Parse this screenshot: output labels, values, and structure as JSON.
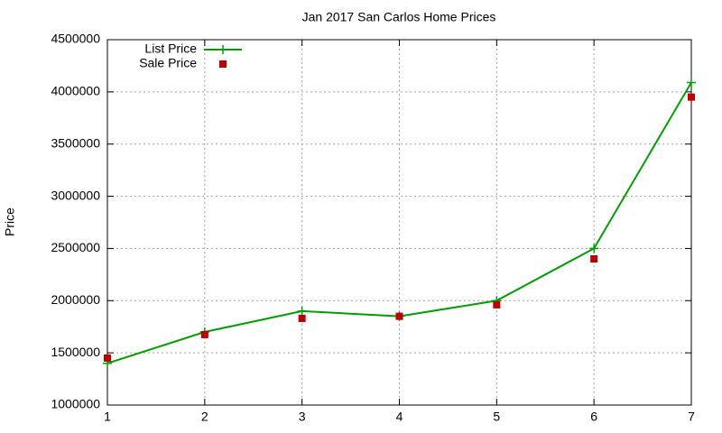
{
  "chart_data": {
    "type": "line",
    "title": "Jan 2017 San Carlos Home Prices",
    "y_label": "Price",
    "x": [
      1,
      2,
      3,
      4,
      5,
      6,
      7
    ],
    "series": [
      {
        "name": "List Price",
        "color": "#00a000",
        "style": "lines+markers",
        "marker": "plus",
        "values": [
          1400000,
          1700000,
          1900000,
          1850000,
          2000000,
          2500000,
          4090000
        ]
      },
      {
        "name": "Sale Price",
        "color": "#c00000",
        "style": "markers",
        "marker": "square",
        "values": [
          1450000,
          1675000,
          1830000,
          1850000,
          1960000,
          2400000,
          3950000
        ]
      }
    ],
    "xlim": [
      1,
      7
    ],
    "xticks": [
      1,
      2,
      3,
      4,
      5,
      6,
      7
    ],
    "ylim": [
      1000000,
      4500000
    ],
    "yticks": [
      1000000,
      1500000,
      2000000,
      2500000,
      3000000,
      3500000,
      4000000,
      4500000
    ],
    "grid": true,
    "legend": "top-left"
  }
}
